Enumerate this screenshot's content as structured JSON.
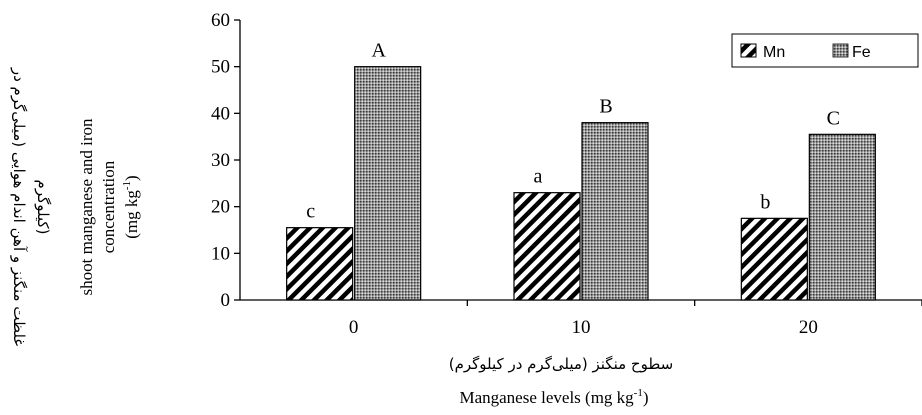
{
  "chart_data": {
    "type": "bar",
    "categories": [
      "0",
      "10",
      "20"
    ],
    "series": [
      {
        "name": "Mn",
        "values": [
          15.5,
          23,
          17.5
        ],
        "letters": [
          "c",
          "a",
          "b"
        ],
        "pattern": "diagonal-hatch"
      },
      {
        "name": "Fe",
        "values": [
          50,
          38,
          35.5
        ],
        "letters": [
          "A",
          "B",
          "C"
        ],
        "pattern": "dense-dots"
      }
    ],
    "ylim": [
      0,
      60
    ],
    "yticks": [
      "0",
      "10",
      "20",
      "30",
      "40",
      "50",
      "60"
    ],
    "xlabel_fa": "سطوح منگنز (میلی‌گرم در کیلوگرم)",
    "xlabel_en": "Manganese levels (mg kg",
    "xlabel_en_sup": "-1",
    "xlabel_en_close": ")",
    "ylabel_fa": [
      "غلظت منگنز و آهن اندام هوایی (میلی‌گرم در",
      "کیلوگرم)"
    ],
    "ylabel_en": [
      "shoot manganese and iron",
      "concentration"
    ],
    "ylabel_unit": "(mg kg",
    "ylabel_unit_sup": "-1",
    "ylabel_unit_close": ")",
    "legend_position": "top-right",
    "grid": false
  }
}
